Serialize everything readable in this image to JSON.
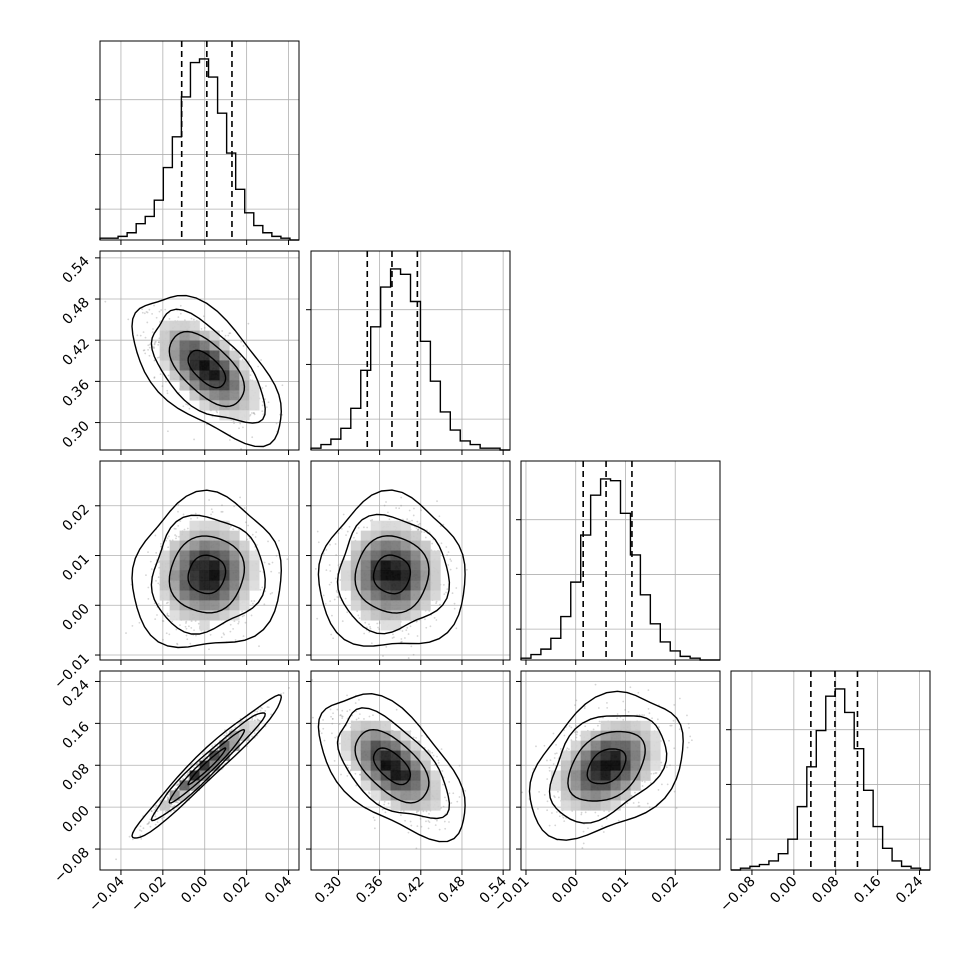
{
  "chart_data": {
    "type": "corner",
    "grid": true,
    "parameters": 4,
    "axes": [
      {
        "range": [
          -0.05,
          0.045
        ],
        "ticks": [
          "−0.04",
          "−0.02",
          "0.00",
          "0.02",
          "0.04"
        ],
        "tick_values": [
          -0.04,
          -0.02,
          0.0,
          0.02,
          0.04
        ]
      },
      {
        "range": [
          0.26,
          0.55
        ],
        "ticks": [
          "0.30",
          "0.36",
          "0.42",
          "0.48",
          "0.54"
        ],
        "tick_values": [
          0.3,
          0.36,
          0.42,
          0.48,
          0.54
        ]
      },
      {
        "range": [
          -0.011,
          0.029
        ],
        "ticks": [
          "−0.01",
          "0.00",
          "0.01",
          "0.02"
        ],
        "tick_values": [
          -0.01,
          0.0,
          0.01,
          0.02
        ]
      },
      {
        "range": [
          -0.12,
          0.26
        ],
        "ticks": [
          "−0.08",
          "0.00",
          "0.08",
          "0.16",
          "0.24"
        ],
        "tick_values": [
          -0.08,
          0.0,
          0.08,
          0.16,
          0.24
        ]
      }
    ],
    "histograms": [
      {
        "bin_edges_range": [
          -0.05,
          0.045
        ],
        "counts": [
          1,
          1,
          2,
          4,
          9,
          13,
          22,
          40,
          57,
          79,
          98,
          100,
          90,
          70,
          48,
          28,
          15,
          8,
          4,
          2,
          1,
          0
        ],
        "quantiles": [
          -0.011,
          0.001,
          0.013
        ]
      },
      {
        "bin_edges_range": [
          0.26,
          0.55
        ],
        "counts": [
          1,
          3,
          6,
          12,
          23,
          44,
          68,
          90,
          100,
          97,
          82,
          60,
          38,
          21,
          11,
          5,
          3,
          1,
          1,
          0
        ],
        "quantiles": [
          0.342,
          0.378,
          0.415
        ]
      },
      {
        "bin_edges_range": [
          -0.011,
          0.029
        ],
        "counts": [
          1,
          3,
          6,
          12,
          24,
          43,
          69,
          91,
          100,
          99,
          81,
          58,
          36,
          20,
          10,
          5,
          2,
          1,
          0,
          0
        ],
        "quantiles": [
          0.0015,
          0.0061,
          0.0113
        ]
      },
      {
        "bin_edges_range": [
          -0.12,
          0.26
        ],
        "counts": [
          0,
          1,
          2,
          3,
          5,
          9,
          17,
          35,
          57,
          77,
          96,
          100,
          87,
          67,
          44,
          24,
          12,
          5,
          2,
          1,
          0
        ],
        "quantiles": [
          0.0325,
          0.0785,
          0.1215
        ]
      }
    ],
    "pairs": [
      {
        "x": 0,
        "y": 1,
        "mean": [
          0.001,
          0.378
        ],
        "sd": [
          0.012,
          0.036
        ],
        "corr": -0.58
      },
      {
        "x": 0,
        "y": 2,
        "mean": [
          0.001,
          0.0062
        ],
        "sd": [
          0.012,
          0.0052
        ],
        "corr": 0.05
      },
      {
        "x": 1,
        "y": 2,
        "mean": [
          0.378,
          0.0062
        ],
        "sd": [
          0.036,
          0.0052
        ],
        "corr": 0.0
      },
      {
        "x": 0,
        "y": 3,
        "mean": [
          0.001,
          0.078
        ],
        "sd": [
          0.012,
          0.046
        ],
        "corr": 0.97
      },
      {
        "x": 1,
        "y": 3,
        "mean": [
          0.378,
          0.078
        ],
        "sd": [
          0.036,
          0.046
        ],
        "corr": -0.55
      },
      {
        "x": 2,
        "y": 3,
        "mean": [
          0.0062,
          0.078
        ],
        "sd": [
          0.0052,
          0.046
        ],
        "corr": 0.35
      }
    ],
    "contour_levels_sigma": [
      0.5,
      1.0,
      1.5,
      2.0
    ],
    "colors": {
      "line": "#000000",
      "points": "#888888",
      "grid": "#b0b0b0",
      "frame": "#000000"
    }
  }
}
